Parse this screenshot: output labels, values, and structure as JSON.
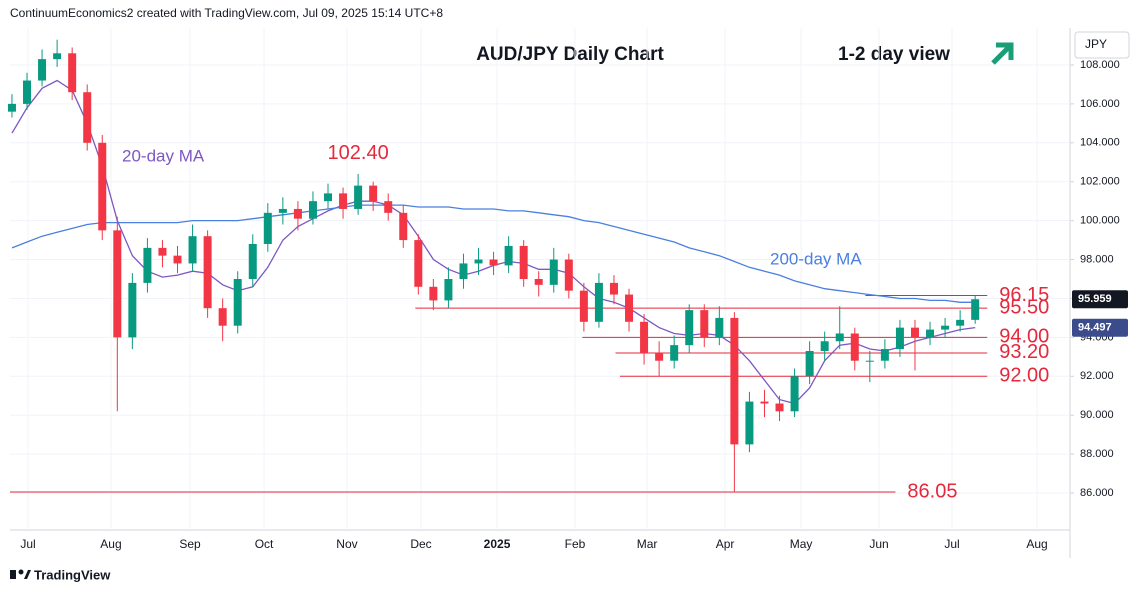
{
  "header": "ContinuumEconomics2 created with TradingView.com, Jul 09, 2025 15:14 UTC+8",
  "footer": "TradingView",
  "chart_data": {
    "type": "candlestick",
    "title": "AUD/JPY Daily Chart",
    "subtitle": "1-2 day view",
    "currency": "JPY",
    "x": [
      0,
      1,
      2,
      3,
      4,
      5,
      6,
      7,
      8,
      9,
      10,
      11,
      12,
      13,
      14,
      15,
      16,
      17,
      18,
      19,
      20,
      21,
      22,
      23,
      24,
      25,
      26,
      27,
      28,
      29,
      30,
      31,
      32,
      33,
      34,
      35,
      36,
      37,
      38,
      39,
      40,
      41,
      42,
      43,
      44,
      45,
      46,
      47,
      48,
      49,
      50,
      51,
      52,
      53,
      54,
      55,
      56,
      57,
      58,
      59,
      60,
      61,
      62,
      63,
      64
    ],
    "open": [
      105.6,
      106.0,
      107.2,
      108.3,
      108.6,
      106.6,
      104.0,
      99.5,
      94.0,
      96.8,
      98.6,
      98.2,
      97.8,
      99.2,
      95.5,
      94.6,
      97.0,
      98.8,
      100.4,
      100.6,
      100.1,
      101.0,
      101.4,
      100.6,
      101.8,
      101.0,
      100.4,
      99.0,
      96.6,
      95.9,
      97.0,
      97.8,
      98.0,
      97.7,
      98.7,
      97.0,
      96.7,
      98.0,
      96.4,
      94.8,
      96.8,
      96.2,
      94.8,
      93.2,
      92.8,
      93.6,
      95.4,
      94.0,
      95.0,
      88.5,
      90.7,
      90.6,
      90.2,
      92.0,
      93.3,
      93.8,
      94.2,
      92.8,
      92.8,
      93.4,
      94.5,
      94.0,
      94.4,
      94.6,
      94.9
    ],
    "high": [
      106.5,
      107.6,
      108.8,
      109.3,
      108.9,
      107.0,
      104.4,
      100.2,
      97.3,
      99.1,
      99.0,
      98.7,
      99.8,
      99.5,
      96.0,
      97.4,
      99.3,
      100.9,
      101.2,
      101.0,
      101.5,
      101.9,
      101.7,
      102.4,
      102.0,
      101.4,
      100.8,
      99.3,
      97.0,
      97.6,
      98.3,
      98.6,
      98.4,
      99.2,
      99.0,
      97.4,
      98.6,
      98.3,
      96.8,
      97.3,
      97.2,
      96.5,
      95.2,
      93.8,
      94.1,
      95.7,
      95.7,
      95.6,
      95.3,
      91.2,
      91.3,
      91.0,
      92.4,
      93.8,
      94.3,
      95.6,
      94.5,
      93.3,
      93.9,
      94.9,
      94.9,
      94.8,
      95.0,
      95.4,
      96.15
    ],
    "low": [
      105.3,
      105.7,
      106.9,
      107.9,
      106.2,
      103.6,
      99.0,
      90.2,
      93.4,
      96.3,
      97.6,
      97.3,
      97.4,
      95.0,
      93.8,
      94.2,
      96.6,
      98.4,
      99.8,
      99.5,
      99.8,
      100.6,
      100.1,
      100.3,
      100.5,
      100.0,
      98.6,
      96.2,
      95.4,
      95.5,
      96.5,
      97.2,
      97.2,
      97.3,
      96.6,
      96.1,
      96.3,
      96.0,
      94.3,
      94.5,
      95.7,
      94.3,
      92.6,
      92.0,
      92.4,
      93.2,
      93.5,
      93.6,
      86.05,
      88.1,
      89.9,
      89.7,
      89.9,
      91.6,
      92.8,
      93.4,
      92.3,
      91.7,
      92.4,
      93.0,
      92.3,
      93.6,
      94.0,
      94.3,
      94.7
    ],
    "close": [
      106.0,
      107.2,
      108.3,
      108.6,
      106.6,
      104.0,
      99.5,
      94.0,
      96.8,
      98.6,
      98.2,
      97.8,
      99.2,
      95.5,
      94.6,
      97.0,
      98.8,
      100.4,
      100.6,
      100.1,
      101.0,
      101.4,
      100.6,
      101.8,
      101.0,
      100.4,
      99.0,
      96.6,
      95.9,
      97.0,
      97.8,
      98.0,
      97.7,
      98.7,
      97.0,
      96.7,
      98.0,
      96.4,
      94.8,
      96.8,
      96.2,
      94.8,
      93.2,
      92.8,
      93.6,
      95.4,
      94.0,
      95.0,
      88.5,
      90.7,
      90.6,
      90.2,
      92.0,
      93.3,
      93.8,
      94.2,
      92.8,
      92.8,
      93.4,
      94.5,
      94.0,
      94.4,
      94.6,
      94.9,
      95.96
    ],
    "up_color": "#089981",
    "down_color": "#f23645",
    "series": [
      {
        "name": "20-day MA",
        "color": "#7e57c2",
        "values": [
          104.5,
          105.8,
          106.8,
          107.2,
          106.7,
          105.0,
          102.8,
          100.0,
          98.2,
          97.4,
          97.1,
          97.2,
          97.4,
          97.3,
          96.7,
          96.4,
          96.6,
          97.6,
          99.0,
          99.7,
          100.1,
          100.5,
          100.8,
          101.0,
          101.0,
          100.8,
          100.3,
          99.2,
          98.0,
          97.5,
          97.2,
          97.4,
          97.7,
          97.9,
          97.8,
          97.5,
          97.5,
          97.3,
          96.6,
          96.0,
          95.8,
          95.5,
          95.0,
          94.5,
          94.2,
          94.1,
          94.2,
          94.1,
          93.6,
          92.8,
          91.8,
          90.8,
          90.6,
          91.4,
          92.8,
          93.6,
          93.7,
          93.4,
          93.3,
          93.5,
          93.8,
          94.0,
          94.2,
          94.4,
          94.5
        ]
      },
      {
        "name": "200-day MA",
        "color": "#4a7fe0",
        "values": [
          98.6,
          98.9,
          99.2,
          99.4,
          99.6,
          99.8,
          99.9,
          99.9,
          99.9,
          99.9,
          99.9,
          99.9,
          100.0,
          100.0,
          100.0,
          100.0,
          100.1,
          100.2,
          100.3,
          100.4,
          100.5,
          100.6,
          100.7,
          100.8,
          100.8,
          100.8,
          100.8,
          100.7,
          100.7,
          100.7,
          100.6,
          100.6,
          100.6,
          100.5,
          100.5,
          100.4,
          100.3,
          100.2,
          100.0,
          99.9,
          99.7,
          99.5,
          99.3,
          99.1,
          98.9,
          98.6,
          98.4,
          98.2,
          97.9,
          97.6,
          97.4,
          97.2,
          96.9,
          96.7,
          96.5,
          96.4,
          96.3,
          96.2,
          96.1,
          96.0,
          96.0,
          95.9,
          95.9,
          95.8,
          95.8
        ]
      }
    ],
    "last_price": 95.959,
    "ma20_last": 94.497,
    "peak_label": {
      "value": 102.4,
      "label": "102.40"
    },
    "levels": [
      {
        "value": 96.15,
        "label": "96.15",
        "x_start": 56.7,
        "x_end": 64.8
      },
      {
        "value": 95.5,
        "label": "95.50",
        "x_start": 26.8,
        "x_end": 64.8
      },
      {
        "value": 94.0,
        "label": "94.00",
        "x_start": 37.9,
        "x_end": 64.8
      },
      {
        "value": 93.2,
        "label": "93.20",
        "x_start": 40.1,
        "x_end": 64.8
      },
      {
        "value": 92.0,
        "label": "92.00",
        "x_start": 40.4,
        "x_end": 64.8
      },
      {
        "value": 86.05,
        "label": "86.05",
        "x_start": -0.13,
        "x_end": 58.7
      }
    ],
    "level_color": "#e5283c",
    "xlim": [
      -0.13,
      70.3
    ],
    "xticks": [
      {
        "value": 1.07,
        "label": "Jul"
      },
      {
        "value": 6.58,
        "label": "Aug"
      },
      {
        "value": 11.83,
        "label": "Sep"
      },
      {
        "value": 16.75,
        "label": "Oct"
      },
      {
        "value": 22.26,
        "label": "Nov"
      },
      {
        "value": 27.18,
        "label": "Dec"
      },
      {
        "value": 32.23,
        "label": "2025"
      },
      {
        "value": 37.41,
        "label": "Feb"
      },
      {
        "value": 42.2,
        "label": "Mar"
      },
      {
        "value": 47.38,
        "label": "Apr"
      },
      {
        "value": 52.43,
        "label": "May"
      },
      {
        "value": 57.61,
        "label": "Jun"
      },
      {
        "value": 62.46,
        "label": "Jul"
      },
      {
        "value": 68.11,
        "label": "Aug"
      }
    ],
    "ylim": [
      84.1,
      109.9
    ],
    "yticks": [
      {
        "value": 86,
        "label": "86.000"
      },
      {
        "value": 88,
        "label": "88.000"
      },
      {
        "value": 90,
        "label": "90.000"
      },
      {
        "value": 92,
        "label": "92.000"
      },
      {
        "value": 94,
        "label": "94.000"
      },
      {
        "value": 96,
        "label": "96.000"
      },
      {
        "value": 98,
        "label": "98.000"
      },
      {
        "value": 100,
        "label": "100.000"
      },
      {
        "value": 102,
        "label": "102.000"
      },
      {
        "value": 104,
        "label": "104.000"
      },
      {
        "value": 106,
        "label": "106.000"
      },
      {
        "value": 108,
        "label": "108.000"
      }
    ]
  }
}
